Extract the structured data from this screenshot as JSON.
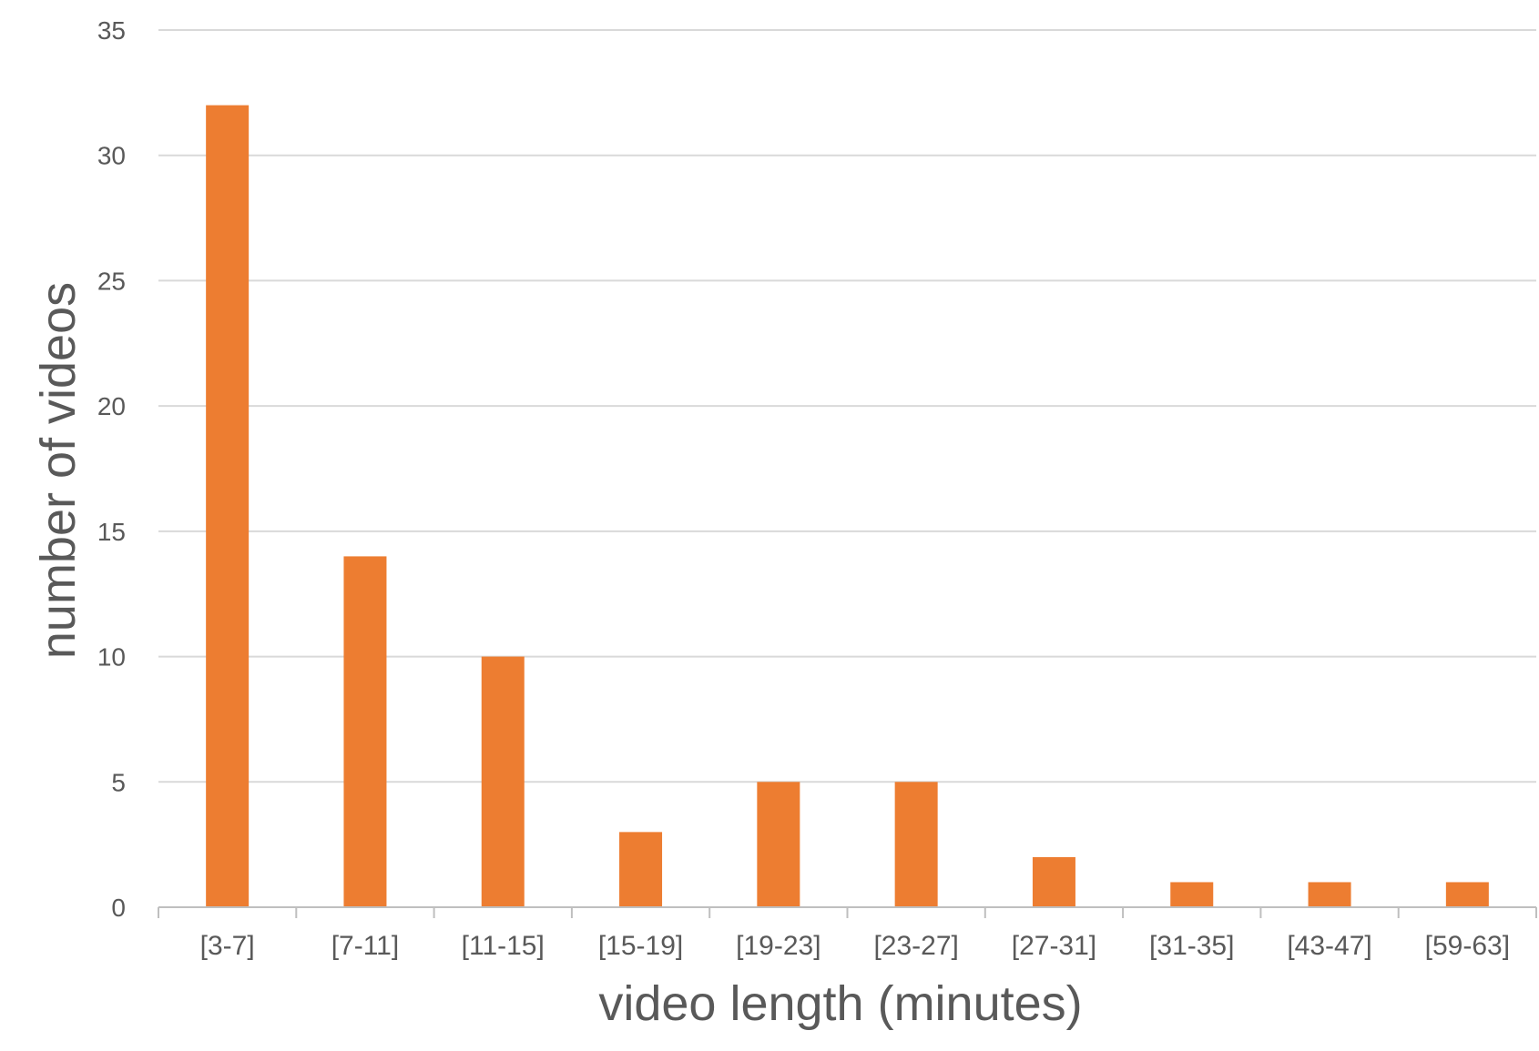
{
  "chart_data": {
    "type": "bar",
    "title": "",
    "xlabel": "video length (minutes)",
    "ylabel": "number of videos",
    "categories": [
      "[3-7]",
      "[7-11]",
      "[11-15]",
      "[15-19]",
      "[19-23]",
      "[23-27]",
      "[27-31]",
      "[31-35]",
      "[43-47]",
      "[59-63]"
    ],
    "values": [
      32,
      14,
      10,
      3,
      5,
      5,
      2,
      1,
      1,
      1
    ],
    "ylim": [
      0,
      35
    ],
    "yticks": [
      0,
      5,
      10,
      15,
      20,
      25,
      30,
      35
    ],
    "grid": true,
    "legend": "none",
    "colors": {
      "bar": "#ED7D31",
      "grid": "#D9D9D9",
      "text": "#595959"
    }
  }
}
